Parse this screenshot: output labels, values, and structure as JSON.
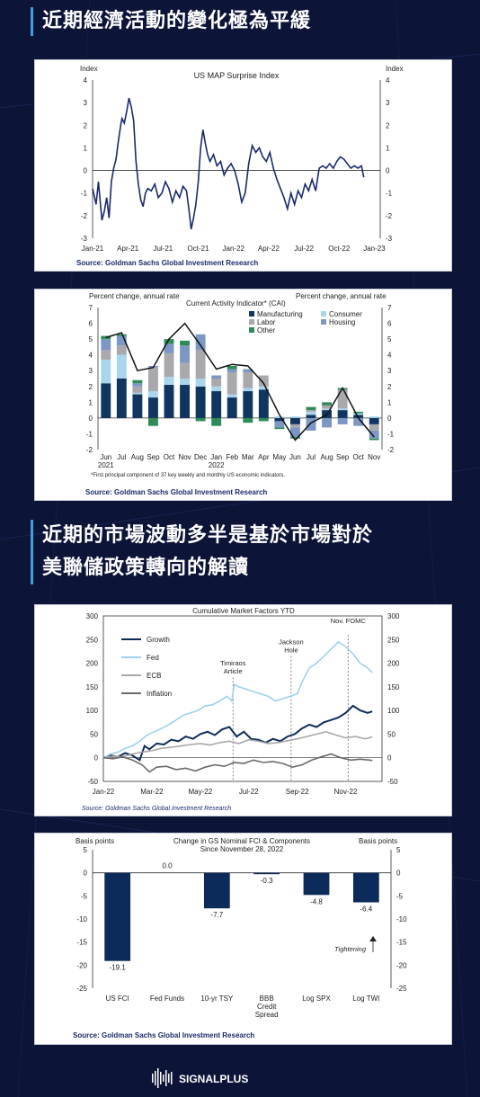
{
  "headings": {
    "h1": "近期經濟活動的變化極為平緩",
    "h2_line1": "近期的市場波動多半是基於市場對於",
    "h2_line2": "美聯儲政策轉向的解讀"
  },
  "brand": {
    "name": "SIGNALPLUS",
    "accent": "#3aa3d9",
    "background": "#0c1438"
  },
  "chart_data": [
    {
      "type": "line",
      "title": "US MAP Surprise Index",
      "ylabel_left": "Index",
      "ylabel_right": "Index",
      "ylim": [
        -3,
        4
      ],
      "yticks": [
        4,
        3,
        2,
        1,
        0,
        -1,
        -2,
        -3
      ],
      "xlim": [
        0,
        24.5
      ],
      "xticks": [
        {
          "x": 0,
          "label": "Jan-21"
        },
        {
          "x": 3,
          "label": "Apr-21"
        },
        {
          "x": 6,
          "label": "Jul-21"
        },
        {
          "x": 9,
          "label": "Oct-21"
        },
        {
          "x": 12,
          "label": "Jan-22"
        },
        {
          "x": 15,
          "label": "Apr-22"
        },
        {
          "x": 18,
          "label": "Jul-22"
        },
        {
          "x": 21,
          "label": "Oct-22"
        },
        {
          "x": 24,
          "label": "Jan-23"
        }
      ],
      "color": "#1a2a6c",
      "source": "Source: Goldman Sachs Global Investment Research",
      "series": [
        {
          "x": [
            0,
            0.3,
            0.5,
            0.8,
            1,
            1.2,
            1.4,
            1.6,
            1.8,
            2,
            2.2,
            2.4,
            2.5,
            2.7,
            2.9,
            3.1,
            3.3,
            3.5,
            3.7,
            3.9,
            4.1,
            4.3,
            4.5,
            4.7,
            5,
            5.3,
            5.6,
            5.9,
            6.2,
            6.5,
            6.8,
            7.1,
            7.4,
            7.7,
            8,
            8.2,
            8.4,
            8.6,
            8.8,
            9,
            9.2,
            9.4,
            9.6,
            9.8,
            10,
            10.3,
            10.6,
            10.9,
            11.2,
            11.5,
            11.8,
            12.1,
            12.4,
            12.7,
            13,
            13.3,
            13.6,
            13.9,
            14.2,
            14.5,
            14.8,
            15.1,
            15.4,
            15.7,
            16,
            16.3,
            16.6,
            16.9,
            17.2,
            17.5,
            17.8,
            18.1,
            18.4,
            18.7,
            19,
            19.3,
            19.6,
            19.9,
            20.2,
            20.5,
            20.8,
            21.1,
            21.4,
            21.7,
            22,
            22.3,
            22.6,
            22.9,
            23.1
          ],
          "y": [
            -0.8,
            -1.5,
            -0.5,
            -2.2,
            -1.8,
            -1.2,
            -2.1,
            -0.5,
            0.1,
            0.5,
            1.3,
            2.0,
            2.3,
            2.1,
            2.6,
            3.2,
            2.8,
            2.2,
            0.4,
            -0.6,
            -1.3,
            -1.6,
            -1.0,
            -0.8,
            -0.9,
            -0.6,
            -1.2,
            -1.0,
            -0.5,
            -0.8,
            -1.4,
            -0.9,
            -1.2,
            -0.7,
            -0.9,
            -1.7,
            -2.6,
            -2.1,
            -1.5,
            -0.5,
            1.0,
            1.8,
            1.2,
            0.7,
            0.4,
            0.7,
            0.2,
            0.4,
            -0.2,
            0.1,
            0.3,
            0.0,
            -0.6,
            -1.4,
            -1.0,
            0.3,
            1.1,
            0.8,
            1.0,
            0.6,
            0.4,
            0.8,
            0.1,
            -0.4,
            -0.8,
            -1.2,
            -1.7,
            -1.0,
            -1.5,
            -0.9,
            -1.2,
            -0.6,
            -0.9,
            -0.4,
            -0.9,
            0.1,
            0.2,
            0.1,
            0.3,
            0.1,
            0.4,
            0.6,
            0.5,
            0.3,
            0.1,
            0.2,
            0.1,
            0.2,
            -0.3
          ]
        }
      ]
    },
    {
      "type": "bar",
      "title": "Current Activity Indicator* (CAI)",
      "ylabel_left": "Percent change, annual rate",
      "ylabel_right": "Percent change, annual rate",
      "ylim": [
        -2,
        7
      ],
      "yticks": [
        7,
        6,
        5,
        4,
        3,
        2,
        1,
        0,
        -1,
        -2
      ],
      "categories": [
        "Jun",
        "Jul",
        "Aug",
        "Sep",
        "Oct",
        "Nov",
        "Dec",
        "Jan",
        "Feb",
        "Mar",
        "Apr",
        "May",
        "Jun",
        "Jul",
        "Aug",
        "Sep",
        "Oct",
        "Nov"
      ],
      "years": [
        {
          "index": 0,
          "label": "2021"
        },
        {
          "index": 7,
          "label": "2022"
        }
      ],
      "note": "*First principal component of 37 key weekly and monthly US economic indicators.",
      "source": "Source: Goldman Sachs Global Investment Research",
      "legend": [
        "Manufacturing",
        "Consumer",
        "Labor",
        "Housing",
        "Other"
      ],
      "colors": {
        "Manufacturing": "#0f3560",
        "Consumer": "#a9d6ee",
        "Labor": "#a9a9ad",
        "Housing": "#7c97c3",
        "Other": "#2e8b57"
      },
      "series": [
        {
          "name": "Manufacturing",
          "values": [
            2.2,
            2.5,
            1.5,
            1.3,
            2.1,
            2.1,
            2.0,
            1.7,
            1.3,
            1.7,
            1.8,
            -0.2,
            -0.4,
            0.2,
            0.5,
            0.5,
            0.2,
            -0.4
          ]
        },
        {
          "name": "Consumer",
          "values": [
            1.5,
            1.5,
            0.1,
            0.4,
            0.5,
            0.4,
            0.5,
            0.3,
            0.2,
            0.2,
            0.2,
            0.1,
            0.1,
            0.2,
            0.1,
            0.1,
            0.1,
            0.1
          ]
        },
        {
          "name": "Labor",
          "values": [
            0.6,
            0.6,
            0.4,
            1.5,
            1.5,
            1.0,
            1.8,
            0.5,
            1.4,
            1.0,
            0.7,
            0.0,
            -0.2,
            0.1,
            0.2,
            1.2,
            0.0,
            -0.4
          ]
        },
        {
          "name": "Housing",
          "values": [
            0.7,
            0.6,
            0.2,
            0.1,
            0.6,
            1.1,
            1.0,
            0.2,
            0.2,
            0.2,
            0.0,
            -0.4,
            -0.6,
            -0.8,
            -0.6,
            -0.4,
            -0.5,
            -0.5
          ]
        },
        {
          "name": "Other",
          "values": [
            0.2,
            0.1,
            0.2,
            -0.5,
            0.3,
            0.3,
            -0.2,
            -0.5,
            0.2,
            -0.3,
            -0.2,
            -0.1,
            -0.1,
            0.2,
            0.2,
            0.1,
            0.1,
            -0.1
          ]
        }
      ],
      "cai": [
        5.1,
        5.4,
        3.0,
        3.2,
        5.0,
        6.0,
        4.6,
        3.1,
        3.4,
        3.3,
        2.2,
        0.2,
        -1.4,
        -0.3,
        0.2,
        1.9,
        0.0,
        -1.2
      ]
    },
    {
      "type": "line",
      "title": "Cumulative Market Factors YTD",
      "ylim": [
        -50,
        300
      ],
      "yticks": [
        300,
        250,
        200,
        150,
        100,
        50,
        0,
        -50
      ],
      "xlim": [
        0,
        11.5
      ],
      "xticks": [
        {
          "x": 0,
          "label": "Jan-22"
        },
        {
          "x": 2,
          "label": "Mar-22"
        },
        {
          "x": 4,
          "label": "May-22"
        },
        {
          "x": 6,
          "label": "Jul-22"
        },
        {
          "x": 8,
          "label": "Sep-22"
        },
        {
          "x": 10,
          "label": "Nov-22"
        }
      ],
      "source": "Source: Goldman Sachs Global Investment Research",
      "annotations": [
        {
          "x": 5.35,
          "label": [
            "Timiraos",
            "Article"
          ],
          "label_y": 195
        },
        {
          "x": 7.75,
          "label": [
            "Jackson",
            "Hole"
          ],
          "label_y": 240
        },
        {
          "x": 10.1,
          "label": [
            "Nov. FOMC"
          ],
          "label_y": 285
        }
      ],
      "series": [
        {
          "name": "Growth",
          "color": "#0d2b5a",
          "x": [
            0,
            0.3,
            0.6,
            0.9,
            1.2,
            1.5,
            1.7,
            1.9,
            2.2,
            2.5,
            2.8,
            3.1,
            3.4,
            3.7,
            4,
            4.3,
            4.6,
            4.9,
            5.2,
            5.5,
            5.8,
            6.1,
            6.4,
            6.7,
            7,
            7.3,
            7.6,
            7.9,
            8.2,
            8.5,
            8.8,
            9.1,
            9.4,
            9.7,
            10,
            10.3,
            10.6,
            10.9,
            11.1
          ],
          "y": [
            0,
            5,
            2,
            10,
            5,
            -5,
            25,
            18,
            30,
            28,
            38,
            35,
            45,
            40,
            50,
            55,
            48,
            60,
            65,
            45,
            55,
            40,
            38,
            32,
            40,
            35,
            45,
            50,
            62,
            70,
            65,
            75,
            80,
            85,
            95,
            110,
            100,
            95,
            98
          ]
        },
        {
          "name": "Fed",
          "color": "#9ed1ec",
          "x": [
            0,
            0.3,
            0.6,
            0.9,
            1.2,
            1.5,
            1.8,
            2.1,
            2.4,
            2.7,
            3,
            3.3,
            3.6,
            3.9,
            4.2,
            4.5,
            4.8,
            5.1,
            5.3,
            5.4,
            5.6,
            5.9,
            6.2,
            6.5,
            6.8,
            7.1,
            7.4,
            7.7,
            8,
            8.2,
            8.5,
            8.8,
            9.1,
            9.4,
            9.7,
            10,
            10.3,
            10.6,
            10.9,
            11.1
          ],
          "y": [
            0,
            8,
            12,
            20,
            25,
            35,
            48,
            55,
            62,
            70,
            80,
            90,
            95,
            100,
            110,
            112,
            120,
            130,
            120,
            155,
            150,
            145,
            140,
            135,
            130,
            120,
            125,
            130,
            135,
            160,
            190,
            200,
            215,
            230,
            245,
            235,
            220,
            200,
            190,
            180
          ]
        },
        {
          "name": "ECB",
          "color": "#a8a8a8",
          "x": [
            0,
            0.4,
            0.8,
            1.2,
            1.6,
            2,
            2.4,
            2.8,
            3.2,
            3.6,
            4,
            4.4,
            4.8,
            5.2,
            5.6,
            6,
            6.4,
            6.8,
            7.2,
            7.6,
            8,
            8.4,
            8.8,
            9.2,
            9.6,
            10,
            10.4,
            10.8,
            11.1
          ],
          "y": [
            0,
            3,
            2,
            8,
            12,
            15,
            20,
            22,
            25,
            28,
            30,
            27,
            32,
            35,
            30,
            38,
            35,
            30,
            32,
            36,
            40,
            45,
            50,
            55,
            48,
            42,
            45,
            40,
            44
          ]
        },
        {
          "name": "Inflation",
          "color": "#6a6a6a",
          "x": [
            0,
            0.4,
            0.8,
            1.2,
            1.6,
            1.9,
            2.2,
            2.6,
            3,
            3.4,
            3.8,
            4.2,
            4.6,
            5,
            5.4,
            5.8,
            6.2,
            6.6,
            7,
            7.4,
            7.8,
            8.2,
            8.6,
            9,
            9.4,
            9.8,
            10.2,
            10.6,
            11,
            11.1
          ],
          "y": [
            0,
            -2,
            2,
            -5,
            -15,
            -30,
            -20,
            -18,
            -25,
            -22,
            -28,
            -20,
            -15,
            -18,
            -10,
            -12,
            -5,
            -10,
            -8,
            -12,
            -20,
            -15,
            -5,
            2,
            8,
            0,
            -5,
            -3,
            -5,
            -6
          ]
        }
      ]
    },
    {
      "type": "bar",
      "title": "Change in GS Nominal FCI & Components",
      "subtitle": "Since November 28, 2022",
      "ylabel_left": "Basis points",
      "ylabel_right": "Basis points",
      "ylim": [
        -25,
        5
      ],
      "yticks": [
        5,
        0,
        -5,
        -10,
        -15,
        -20,
        -25
      ],
      "categories": [
        "US FCI",
        "Fed Funds",
        "10-yr TSY",
        "BBB Credit Spread",
        "Log SPX",
        "Log TWI"
      ],
      "category_lines": [
        [
          "US FCI"
        ],
        [
          "Fed Funds"
        ],
        [
          "10-yr TSY"
        ],
        [
          "BBB",
          "Credit",
          "Spread"
        ],
        [
          "Log SPX"
        ],
        [
          "Log TWI"
        ]
      ],
      "values": [
        -19.1,
        0.0,
        -7.7,
        -0.3,
        -4.8,
        -6.4
      ],
      "value_labels": [
        "-19.1",
        "0.0",
        "-7.7",
        "-0.3",
        "-4.8",
        "-6.4"
      ],
      "annotation": "Tightening",
      "color": "#0d2b5a",
      "source": "Source: Goldman Sachs Global Investment Research"
    }
  ]
}
